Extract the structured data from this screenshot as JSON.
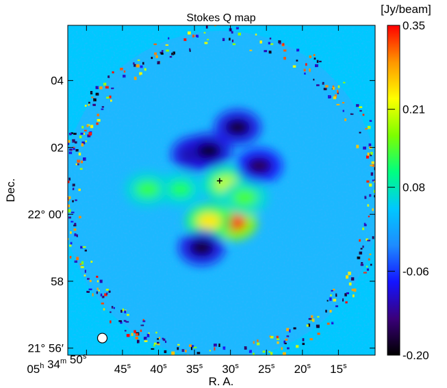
{
  "chart_data": {
    "type": "heatmap",
    "title": "Stokes Q map",
    "xlabel": "R. A.",
    "ylabel": "Dec.",
    "colorbar": {
      "unit": "[Jy/beam]",
      "range": [
        -0.2,
        0.35
      ],
      "ticks": [
        "0.35",
        "0.21",
        "0.08",
        "-0.06",
        "-0.20"
      ],
      "tick_values": [
        0.35,
        0.21,
        0.08,
        -0.06,
        -0.2
      ],
      "colormap": [
        "#000000",
        "#3a007a",
        "#1414ff",
        "#1e8cff",
        "#00c8ff",
        "#00ff80",
        "#7dff00",
        "#ffff00",
        "#ff9600",
        "#ff0000"
      ]
    },
    "x_ticks": [
      {
        "sec": 50,
        "label": "05h 34m 50s"
      },
      {
        "sec": 45,
        "label": "45s"
      },
      {
        "sec": 40,
        "label": "40s"
      },
      {
        "sec": 35,
        "label": "35s"
      },
      {
        "sec": 30,
        "label": "30s"
      },
      {
        "sec": 25,
        "label": "25s"
      },
      {
        "sec": 20,
        "label": "20s"
      },
      {
        "sec": 15,
        "label": "15s"
      }
    ],
    "x_tick_parts": {
      "first": {
        "h": "05",
        "m": "34",
        "s": "50"
      },
      "sec_labels": [
        "45",
        "40",
        "35",
        "30",
        "25",
        "20",
        "15"
      ],
      "h_sup": "h",
      "m_sup": "m",
      "s_sup": "s"
    },
    "xlim_sec": [
      52.6,
      9.9
    ],
    "y_ticks": [
      {
        "arcmin": -4,
        "label": "21° 56′"
      },
      {
        "arcmin": -2,
        "label": "58"
      },
      {
        "arcmin": 0,
        "label": "22° 00′"
      },
      {
        "arcmin": 2,
        "label": "02"
      },
      {
        "arcmin": 4,
        "label": "04"
      }
    ],
    "ylim_arcmin": [
      -4.21,
      5.65
    ],
    "background_value": 0.0,
    "features": [
      {
        "ra_sec": 29.5,
        "dec_arcmin": -0.25,
        "value": 0.35,
        "kind": "peak"
      },
      {
        "ra_sec": 33.0,
        "dec_arcmin": -0.2,
        "value": 0.24,
        "kind": "peak"
      },
      {
        "ra_sec": 30.5,
        "dec_arcmin": 0.9,
        "value": 0.2,
        "kind": "peak"
      },
      {
        "ra_sec": 28.0,
        "dec_arcmin": 0.5,
        "value": 0.14,
        "kind": "peak"
      },
      {
        "ra_sec": 37.0,
        "dec_arcmin": 0.75,
        "value": 0.12,
        "kind": "peak"
      },
      {
        "ra_sec": 41.5,
        "dec_arcmin": 0.75,
        "value": 0.13,
        "kind": "peak"
      },
      {
        "ra_sec": 35.0,
        "dec_arcmin": 1.8,
        "value": -0.18,
        "kind": "trough"
      },
      {
        "ra_sec": 33.0,
        "dec_arcmin": 1.9,
        "value": -0.19,
        "kind": "trough"
      },
      {
        "ra_sec": 29.0,
        "dec_arcmin": 2.6,
        "value": -0.18,
        "kind": "trough"
      },
      {
        "ra_sec": 34.0,
        "dec_arcmin": -1.0,
        "value": -0.18,
        "kind": "trough"
      },
      {
        "ra_sec": 26.0,
        "dec_arcmin": 1.45,
        "value": -0.16,
        "kind": "trough"
      }
    ],
    "center_marker": {
      "ra_sec": 31.5,
      "dec_arcmin": 1.0
    },
    "beam": {
      "ra_sec": 47.8,
      "dec_arcmin": -3.7
    }
  }
}
